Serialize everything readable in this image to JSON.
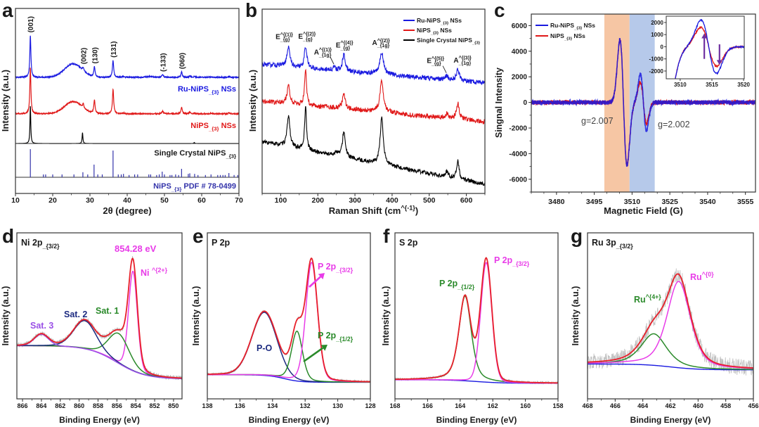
{
  "chart_data": [
    {
      "panel": "a",
      "type": "line",
      "title": "",
      "xlabel": "2θ (degree)",
      "ylabel": "Intensity (a.u.)",
      "xlim": [
        10,
        70
      ],
      "ylim": [
        0,
        100
      ],
      "xticks": [
        10,
        20,
        30,
        40,
        50,
        60,
        70
      ],
      "series": [
        {
          "name": "Ru-NiPS_{3} NSs",
          "color": "#1a1ae0",
          "baseline": [
            49,
            49
          ],
          "noise": 0.35,
          "peaks": [
            [
              14.0,
              31,
              0.35,
              1
            ],
            [
              25.5,
              10,
              5.5,
              0
            ],
            [
              28.2,
              2.5,
              0.4,
              1
            ],
            [
              31.2,
              7.5,
              0.4,
              1
            ],
            [
              36.2,
              12.5,
              0.4,
              1
            ],
            [
              39.0,
              0.6,
              0.5,
              1
            ],
            [
              45.8,
              0.6,
              2,
              0
            ],
            [
              49.5,
              2,
              0.5,
              1
            ],
            [
              54.6,
              4,
              0.4,
              1
            ],
            [
              56.8,
              1,
              0.4,
              1
            ],
            [
              58.1,
              0.6,
              0.4,
              1
            ],
            [
              62.5,
              0.4,
              0.4,
              1
            ],
            [
              67.3,
              0.7,
              0.4,
              1
            ]
          ]
        },
        {
          "name": "NiPS_{3} NSs",
          "color": "#e01818",
          "baseline": [
            22,
            22
          ],
          "noise": 0.35,
          "peaks": [
            [
              14.0,
              34,
              0.35,
              1
            ],
            [
              25.5,
              9,
              5.5,
              0
            ],
            [
              28.2,
              3,
              0.4,
              1
            ],
            [
              31.2,
              10,
              0.4,
              1
            ],
            [
              36.2,
              18,
              0.4,
              1
            ],
            [
              39.0,
              0.6,
              0.5,
              1
            ],
            [
              49.5,
              2,
              0.5,
              1
            ],
            [
              54.6,
              5,
              0.4,
              1
            ],
            [
              56.8,
              1.2,
              0.4,
              1
            ],
            [
              58.1,
              0.8,
              0.4,
              1
            ],
            [
              62.5,
              0.5,
              0.4,
              1
            ],
            [
              67.3,
              0.8,
              0.4,
              1
            ]
          ]
        },
        {
          "name": "Single Crystal NiPS_{3}",
          "color": "#000000",
          "baseline": [
            0,
            0
          ],
          "noise": 0,
          "peaks": [
            [
              14.0,
              28,
              0.25,
              1
            ],
            [
              28.0,
              8,
              0.25,
              1
            ],
            [
              58.0,
              0.8,
              0.25,
              1
            ]
          ]
        }
      ],
      "reference": {
        "name": "NiPS_{3} PDF # 78-0499",
        "color": "#3333aa",
        "sticks": [
          [
            14.0,
            1
          ],
          [
            17.5,
            0.1
          ],
          [
            18.1,
            0.1
          ],
          [
            20.0,
            0.1
          ],
          [
            22.5,
            0.1
          ],
          [
            25.7,
            0.1
          ],
          [
            28.1,
            0.18
          ],
          [
            29.4,
            0.1
          ],
          [
            31.1,
            0.45
          ],
          [
            32.1,
            0.1
          ],
          [
            33.3,
            0.1
          ],
          [
            36.2,
            0.95
          ],
          [
            37.6,
            0.1
          ],
          [
            38.4,
            0.1
          ],
          [
            39.0,
            0.12
          ],
          [
            40.5,
            0.08
          ],
          [
            42.0,
            0.1
          ],
          [
            42.8,
            0.1
          ],
          [
            45.8,
            0.1
          ],
          [
            46.3,
            0.1
          ],
          [
            47.9,
            0.08
          ],
          [
            48.6,
            0.1
          ],
          [
            49.4,
            0.2
          ],
          [
            50.0,
            0.1
          ],
          [
            51.5,
            0.08
          ],
          [
            52.0,
            0.08
          ],
          [
            53.0,
            0.1
          ],
          [
            53.8,
            0.08
          ],
          [
            54.6,
            0.3
          ],
          [
            56.4,
            0.12
          ],
          [
            56.8,
            0.14
          ],
          [
            58.1,
            0.12
          ],
          [
            59.0,
            0.08
          ],
          [
            61.0,
            0.08
          ],
          [
            62.5,
            0.1
          ],
          [
            64.3,
            0.08
          ],
          [
            65.0,
            0.08
          ],
          [
            65.7,
            0.08
          ],
          [
            66.3,
            0.08
          ],
          [
            67.3,
            0.15
          ],
          [
            68.7,
            0.08
          ],
          [
            69.7,
            0.08
          ]
        ]
      },
      "peak_labels": [
        {
          "text": "(001)",
          "x": 14.0
        },
        {
          "text": "(002)",
          "x": 28.2
        },
        {
          "text": "(130)",
          "x": 31.2
        },
        {
          "text": "(131)",
          "x": 36.2
        },
        {
          "text": "(-133)",
          "x": 49.5
        },
        {
          "text": "(060)",
          "x": 54.6
        }
      ]
    },
    {
      "panel": "b",
      "type": "line",
      "title": "",
      "xlabel": "Raman Shift (cm^{-1})",
      "ylabel": "Intensity (a.u.)",
      "xlim": [
        50,
        650
      ],
      "ylim": [
        0,
        100
      ],
      "xticks": [
        100,
        200,
        300,
        400,
        500,
        600
      ],
      "legend": {
        "position": "top-right"
      },
      "series": [
        {
          "name": "Ru-NiPS_{3} NSs",
          "color": "#1a1ae0",
          "baseline": [
            70,
            60
          ],
          "noise": 1.3,
          "peaks": [
            [
              121,
              11,
              9,
              1
            ],
            [
              167,
              12,
              8,
              1
            ],
            [
              245,
              1.5,
              10,
              1
            ],
            [
              270,
              9,
              9,
              1
            ],
            [
              372,
              12,
              12,
              1
            ],
            [
              548,
              2,
              8,
              1
            ],
            [
              577,
              6,
              9,
              1
            ]
          ]
        },
        {
          "name": "NiPS_{3} NSs",
          "color": "#e01818",
          "baseline": [
            50,
            39
          ],
          "noise": 1.3,
          "peaks": [
            [
              121,
              10,
              9,
              1
            ],
            [
              167,
              20,
              6,
              1
            ],
            [
              270,
              8,
              9,
              1
            ],
            [
              372,
              17,
              11,
              1
            ],
            [
              548,
              2.5,
              8,
              1
            ],
            [
              577,
              8.5,
              9,
              1
            ]
          ]
        },
        {
          "name": "Single Crystal NiPS_{3}",
          "color": "#000000",
          "baseline": [
            28,
            5
          ],
          "noise": 1.1,
          "peaks": [
            [
              121,
              17,
              9,
              1
            ],
            [
              167,
              24,
              6,
              1
            ],
            [
              250,
              2,
              10,
              1
            ],
            [
              270,
              14,
              9,
              1
            ],
            [
              372,
              25,
              10,
              1
            ],
            [
              548,
              3,
              8,
              1
            ],
            [
              577,
              10,
              8,
              1
            ]
          ]
        }
      ],
      "mode_labels": [
        {
          "text": "E_{g}^{(1)}",
          "x": 121,
          "leader": false
        },
        {
          "text": "E_{g}^{(2)}",
          "x": 167,
          "leader": false
        },
        {
          "text": "A_{1g}^{(1)}",
          "x": 245,
          "leader": true
        },
        {
          "text": "E_{g}^{(4)}",
          "x": 270,
          "leader": false
        },
        {
          "text": "A_{1g}^{(2)}",
          "x": 372,
          "leader": false
        },
        {
          "text": "E_{g}^{(5)}",
          "x": 548,
          "leader": true
        },
        {
          "text": "A_{1g}^{(3)}",
          "x": 577,
          "leader": false
        }
      ]
    },
    {
      "panel": "c",
      "type": "line",
      "title": "",
      "xlabel": "Magnetic Field (G)",
      "ylabel": "Singnal Intensity",
      "xlim": [
        3470,
        3559
      ],
      "ylim": [
        -7000,
        6900
      ],
      "xticks": [
        3480,
        3495,
        3510,
        3525,
        3540,
        3555
      ],
      "yticks": [
        -6000,
        -4000,
        -2000,
        0,
        2000,
        4000,
        6000
      ],
      "legend": {
        "position": "top-left"
      },
      "bands": [
        {
          "from": 3499,
          "to": 3509,
          "color": "#f6c6a4"
        },
        {
          "from": 3509,
          "to": 3519,
          "color": "#b6c9ea"
        }
      ],
      "series": [
        {
          "name": "Ru-NiPS_{3} NSs",
          "color": "#1a1ae0",
          "noise": 170,
          "derivative_lines": [
            [
              3506.6,
              4900,
              1.4
            ],
            [
              3514.5,
              2200,
              1.2
            ]
          ]
        },
        {
          "name": "NiPS_{3} NSs",
          "color": "#e01818",
          "noise": 170,
          "derivative_lines": [
            [
              3506.6,
              4850,
              1.4
            ],
            [
              3514.5,
              1600,
              1.25
            ]
          ]
        }
      ],
      "annotations": [
        {
          "text": "g=2.007"
        },
        {
          "text": "g=2.002"
        }
      ],
      "inset": {
        "xlim": [
          3507.8,
          3520.1
        ],
        "ylim": [
          -2640,
          2520
        ],
        "xticks": [
          3510,
          3515,
          3520
        ],
        "yticks": [
          -2000,
          -1000,
          0,
          1000,
          2000
        ],
        "arrow_color": "#7030a0",
        "arrows": [
          {
            "x": 3513.8,
            "from": -1000,
            "to": 1100,
            "direction": "up"
          },
          {
            "x": 3516.2,
            "from": 200,
            "to": -1500,
            "direction": "down"
          }
        ]
      }
    },
    {
      "panel": "d",
      "type": "line",
      "title": "Ni 2p_{3/2}",
      "xlabel": "Binding Energy (eV)",
      "ylabel": "Intensity (a.u.)",
      "xlim": [
        866.6,
        849.1
      ],
      "ylim": [
        0,
        100
      ],
      "xticks": [
        866,
        864,
        862,
        860,
        858,
        856,
        854,
        852,
        850
      ],
      "background": {
        "left": 32,
        "right": 12,
        "center": 856,
        "width": 1.5,
        "color": null
      },
      "envelope_color": "#e8202a",
      "raw_color": "#b8b8b8",
      "raw_noise": 1.4,
      "components": [
        {
          "name": "Ni ^{2+}",
          "color": "#e83ce8",
          "peak": [
            854.3,
            60,
            1.1,
            0.2
          ]
        },
        {
          "name": "Sat. 1",
          "color": "#2a8a2a",
          "peak": [
            855.8,
            18,
            2.6,
            0.2
          ]
        },
        {
          "name": "Sat. 2",
          "color": "#1c2a80",
          "peak": [
            859.4,
            17,
            2.8,
            0.2
          ]
        },
        {
          "name": "Sat. 3",
          "color": "#9a50e6",
          "peak": [
            864.0,
            7,
            1.8,
            0.2
          ]
        }
      ],
      "annotations": [
        {
          "text": "854.28 eV",
          "color": "#e83ce8"
        }
      ]
    },
    {
      "panel": "e",
      "type": "line",
      "title": "P 2p",
      "xlabel": "Binding Energy (eV)",
      "ylabel": "Intensity (a.u.)",
      "xlim": [
        138,
        128
      ],
      "ylim": [
        0,
        100
      ],
      "xticks": [
        138,
        136,
        134,
        132,
        130,
        128
      ],
      "background": {
        "left": 14.5,
        "right": 10,
        "center": 133.3,
        "width": 0.5,
        "color": "#1a1ae0"
      },
      "envelope_color": "#e8202a",
      "raw_color": "#b8b8b8",
      "raw_noise": 0.8,
      "components": [
        {
          "name": "P-O",
          "color": "#1c2a80",
          "peak": [
            134.5,
            38,
            1.8,
            0.1
          ]
        },
        {
          "name": "P 2p_{1/2}",
          "color": "#2a8a2a",
          "peak": [
            132.5,
            30,
            0.8,
            0.3
          ]
        },
        {
          "name": "P 2p_{3/2}",
          "color": "#e83ce8",
          "peak": [
            131.6,
            72,
            0.85,
            0.2
          ]
        }
      ],
      "annotations": []
    },
    {
      "panel": "f",
      "type": "line",
      "title": "S 2p",
      "xlabel": "Binding Energy (eV)",
      "ylabel": "Intensity (a.u.)",
      "xlim": [
        168,
        158
      ],
      "ylim": [
        0,
        100
      ],
      "xticks": [
        168,
        166,
        164,
        162,
        160,
        158
      ],
      "background": {
        "left": 11.5,
        "right": 9.4,
        "center": 163,
        "width": 0.8,
        "color": "#1a1ae0"
      },
      "envelope_color": "#e8202a",
      "raw_color": "#b8b8b8",
      "raw_noise": 0.8,
      "components": [
        {
          "name": "P 2p_{1/2}",
          "color": "#2a8a2a",
          "peak": [
            163.7,
            51,
            0.9,
            0.5
          ]
        },
        {
          "name": "P 2p_{3/2}",
          "color": "#e83ce8",
          "peak": [
            162.4,
            72,
            0.8,
            0.1
          ]
        }
      ],
      "annotations": []
    },
    {
      "panel": "g",
      "type": "line",
      "title": "Ru 3p_{3/2}",
      "xlabel": "Binding Energy (eV)",
      "ylabel": "Intensity (a.u.)",
      "xlim": [
        468,
        456
      ],
      "ylim": [
        0,
        100
      ],
      "xticks": [
        468,
        466,
        464,
        462,
        460,
        458,
        456
      ],
      "background": {
        "left": 21,
        "right": 17.5,
        "center": 462,
        "width": 1.0,
        "color": "#1a1ae0"
      },
      "envelope_color": "#e8202a",
      "raw_color": "#c0c0c0",
      "raw_noise": 5,
      "components": [
        {
          "name": "Ru^{4+}",
          "color": "#2a8a2a",
          "peak": [
            463.2,
            19,
            2.2,
            0.6
          ]
        },
        {
          "name": "Ru^{0}",
          "color": "#e83ce8",
          "peak": [
            461.4,
            52,
            2.0,
            0.5
          ]
        }
      ],
      "annotations": []
    }
  ]
}
